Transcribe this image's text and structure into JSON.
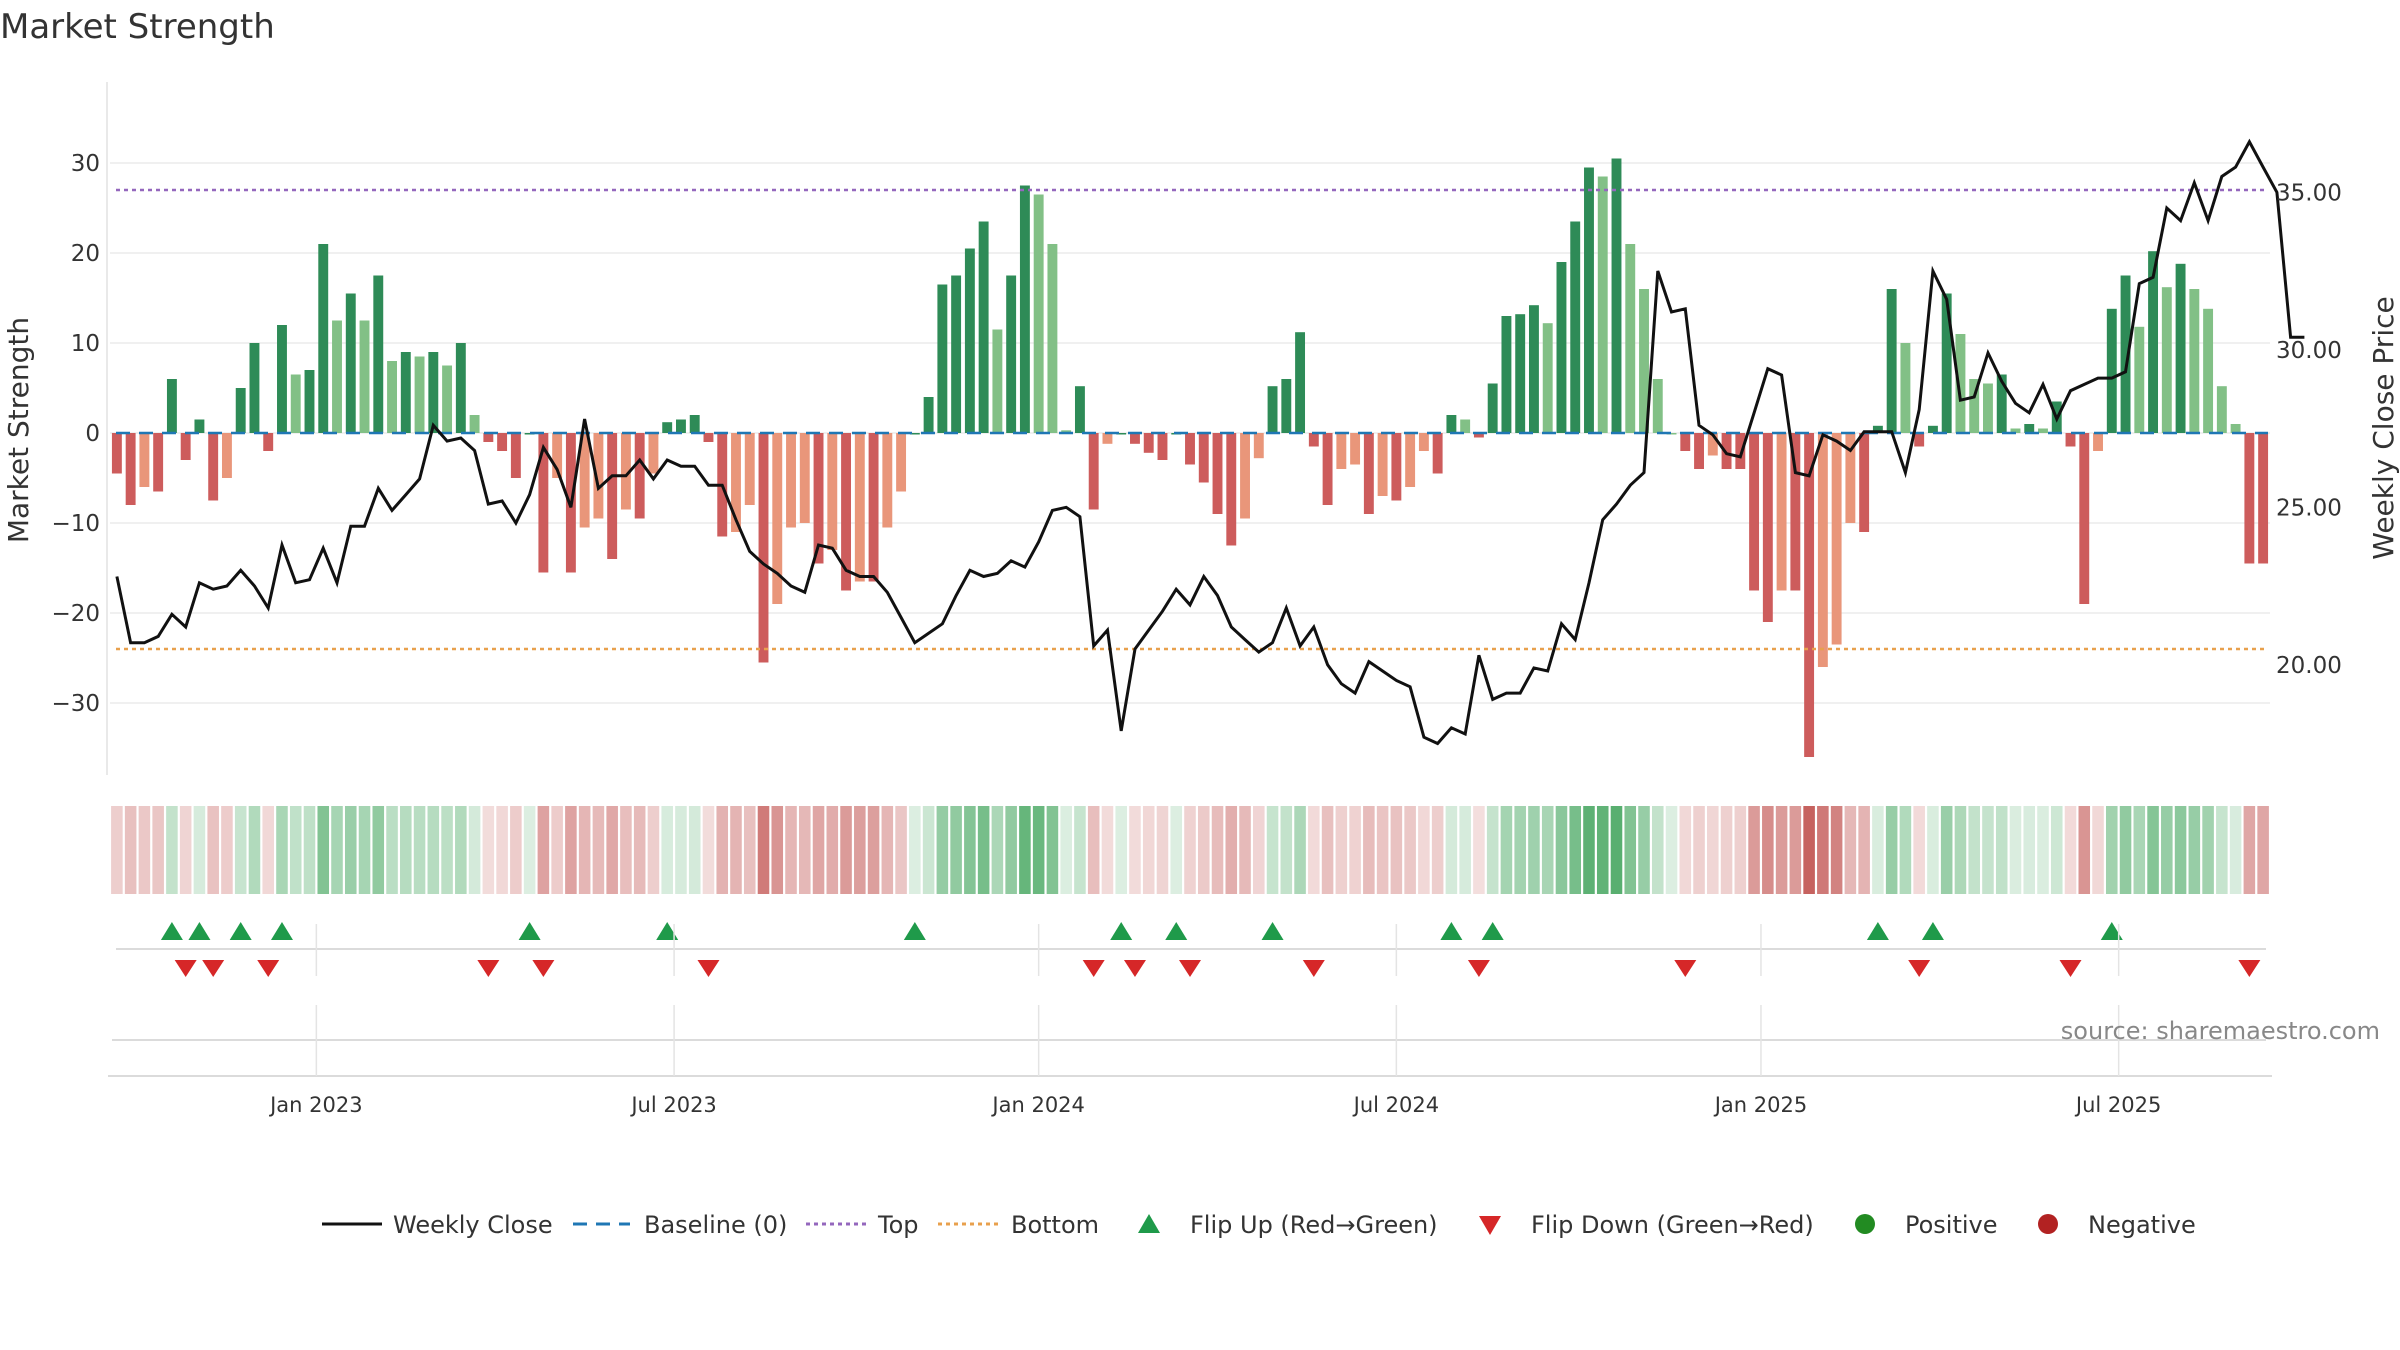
{
  "chart_data": {
    "type": "bar",
    "title": "Market Strength",
    "ylabel_left": "Market Strength",
    "ylabel_right": "Weekly Close Price",
    "left_ylim": [
      -38,
      39
    ],
    "right_ylim": [
      16.5,
      38.5
    ],
    "left_ticks": [
      30,
      20,
      10,
      0,
      -10,
      -20,
      -30
    ],
    "right_ticks": [
      "35.00",
      "30.00",
      "25.00",
      "20.00"
    ],
    "right_tick_values": [
      35,
      30,
      25,
      20
    ],
    "x_dates": [
      "Jan 2023",
      "Jul 2023",
      "Jan 2024",
      "Jul 2024",
      "Jan 2025",
      "Jul 2025"
    ],
    "x_date_weeks": [
      15,
      41,
      67.5,
      93.5,
      120,
      146
    ],
    "reference_lines": {
      "top": 27,
      "bottom": -24,
      "baseline": 0
    },
    "strength": [
      -4.5,
      -8,
      -6,
      -6.5,
      6,
      -3,
      1.5,
      -7.5,
      -5,
      5,
      10,
      -2,
      12,
      6.5,
      7,
      21,
      12.5,
      15.5,
      12.5,
      17.5,
      8,
      9,
      8.5,
      9,
      7.5,
      10,
      2,
      -1,
      -2,
      -5,
      0,
      -15.5,
      -5,
      -15.5,
      -10.5,
      -9.5,
      -14,
      -8.5,
      -9.5,
      -4.5,
      1.2,
      1.5,
      2,
      -1,
      -11.5,
      -11,
      -8,
      -25.5,
      -19,
      -10.5,
      -10,
      -14.5,
      -13,
      -17.5,
      -16.5,
      -16.5,
      -10.5,
      -6.5,
      0,
      4,
      16.5,
      17.5,
      20.5,
      23.5,
      11.5,
      17.5,
      27.5,
      26.5,
      21,
      0.3,
      5.2,
      -8.5,
      -1.2,
      0,
      -1.2,
      -2.2,
      -3,
      0,
      -3.5,
      -5.5,
      -9,
      -12.5,
      -9.5,
      -2.8,
      5.2,
      6,
      11.2,
      -1.5,
      -8,
      -4,
      -3.5,
      -9,
      -7,
      -7.5,
      -6,
      -2,
      -4.5,
      2,
      1.5,
      -0.5,
      5.5,
      13,
      13.2,
      14.2,
      12.2,
      19,
      23.5,
      29.5,
      28.5,
      30.5,
      21,
      16,
      6,
      0,
      -2,
      -4,
      -2.5,
      -4,
      -4,
      -17.5,
      -21,
      -17.5,
      -17.5,
      -36,
      -26,
      -23.5,
      -10,
      -11,
      0.8,
      16,
      10,
      -1.5,
      0.8,
      15.5,
      11,
      6,
      5.5,
      6.5,
      0.5,
      1,
      0.5,
      3.5,
      -1.5,
      -19,
      -2,
      13.8,
      17.5,
      11.8,
      20.2,
      16.2,
      18.8,
      16,
      13.8,
      5.2,
      1,
      -14.5,
      -14.5
    ],
    "price": [
      22.8,
      20.7,
      20.7,
      20.9,
      21.6,
      21.2,
      22.6,
      22.4,
      22.5,
      23,
      22.5,
      21.8,
      23.8,
      22.6,
      22.7,
      23.7,
      22.6,
      24.4,
      24.4,
      25.6,
      24.9,
      25.4,
      25.9,
      27.6,
      27.1,
      27.2,
      26.8,
      25.1,
      25.2,
      24.5,
      25.4,
      26.9,
      26.2,
      25,
      27.8,
      25.6,
      26,
      26,
      26.5,
      25.9,
      26.5,
      26.3,
      26.3,
      25.7,
      25.7,
      24.6,
      23.6,
      23.2,
      22.9,
      22.5,
      22.3,
      23.8,
      23.7,
      23,
      22.8,
      22.8,
      22.3,
      21.5,
      20.7,
      21,
      21.3,
      22.2,
      23,
      22.8,
      22.9,
      23.3,
      23.1,
      23.9,
      24.9,
      25,
      24.7,
      20.6,
      21.1,
      17.9,
      20.5,
      21.1,
      21.7,
      22.4,
      21.9,
      22.8,
      22.2,
      21.2,
      20.8,
      20.4,
      20.7,
      21.8,
      20.6,
      21.2,
      20,
      19.4,
      19.1,
      20.1,
      19.8,
      19.5,
      19.3,
      17.7,
      17.5,
      18,
      17.8,
      20.3,
      18.9,
      19.1,
      19.1,
      19.9,
      19.8,
      21.3,
      20.8,
      22.6,
      24.6,
      25.1,
      25.7,
      26.1,
      32.5,
      31.2,
      31.3,
      27.6,
      27.3,
      26.7,
      26.6,
      28,
      29.4,
      29.2,
      26.1,
      26,
      27.3,
      27.1,
      26.8,
      27.4,
      27.4,
      27.4,
      26.1,
      28.1,
      32.5,
      31.6,
      28.4,
      28.5,
      29.9,
      29,
      28.3,
      28,
      28.9,
      27.8,
      28.7,
      28.9,
      29.1,
      29.1,
      29.3,
      32.1,
      32.3,
      34.5,
      34.1,
      35.3,
      34.1,
      35.5,
      35.8,
      36.6,
      35.8,
      35,
      30.4,
      30.4
    ]
  },
  "legend": {
    "weekly_close": "Weekly Close",
    "baseline": "Baseline (0)",
    "top": "Top",
    "bottom": "Bottom",
    "flip_up": "Flip Up (Red→Green)",
    "flip_down": "Flip Down (Green→Red)",
    "positive": "Positive",
    "negative": "Negative"
  },
  "source": "source: sharemaestro.com",
  "colors": {
    "positive_strong": "#2e8b57",
    "positive_light": "#82c086",
    "negative_strong": "#cd5c5c",
    "negative_light": "#e9967a",
    "price_line": "#111111",
    "top_line": "#9467bd",
    "bottom_line": "#e8a04d",
    "baseline": "#1f77b4",
    "flip_up": "#1f9a4a",
    "flip_down": "#d62728",
    "positive_dot": "#228b22",
    "negative_dot": "#b22222"
  }
}
